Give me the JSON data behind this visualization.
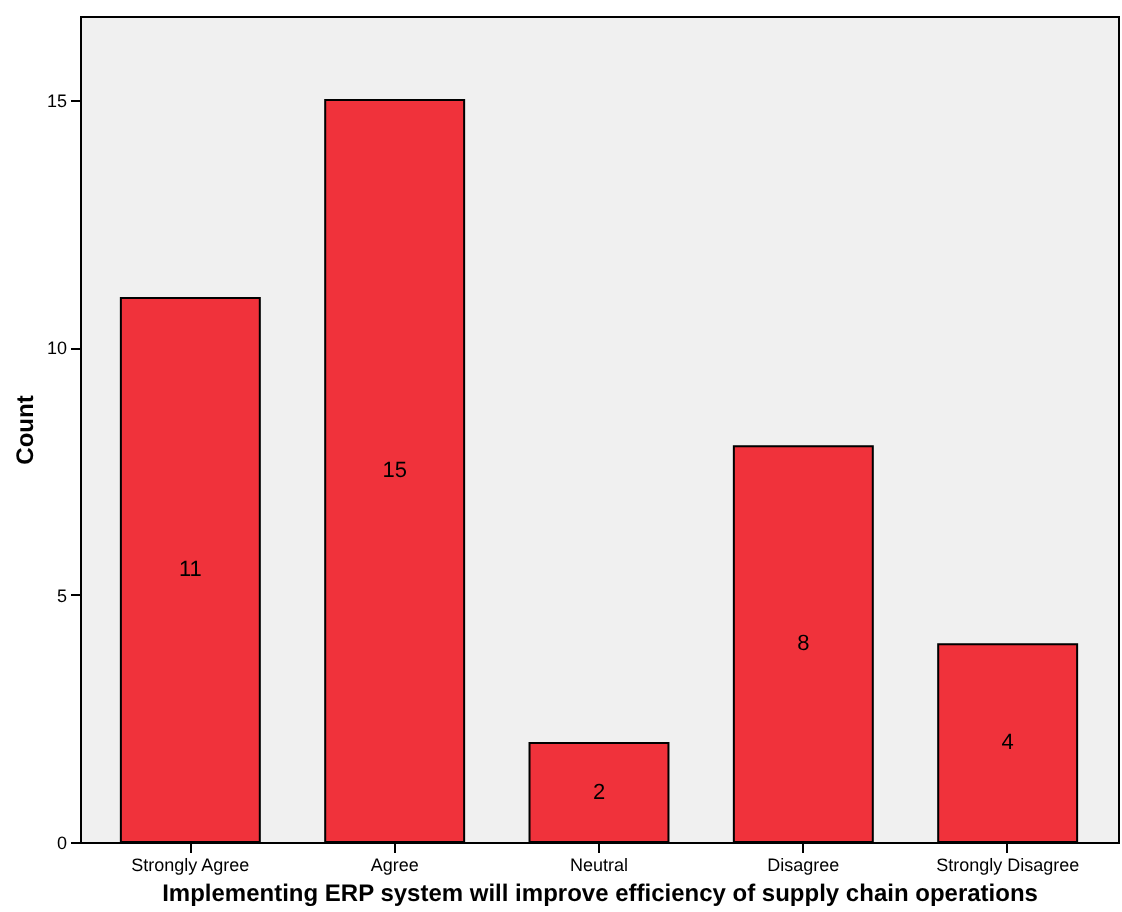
{
  "chart_data": {
    "type": "bar",
    "xlabel": "Implementing ERP system will improve efficiency of supply chain operations",
    "ylabel": "Count",
    "categories": [
      "Strongly Agree",
      "Agree",
      "Neutral",
      "Disagree",
      "Strongly Disagree"
    ],
    "values": [
      11,
      15,
      2,
      8,
      4
    ],
    "color": "#f0323b",
    "ylim": [
      0,
      16.7
    ],
    "yticks": [
      0,
      5,
      10,
      15
    ],
    "data_labels": true,
    "grid": false
  }
}
